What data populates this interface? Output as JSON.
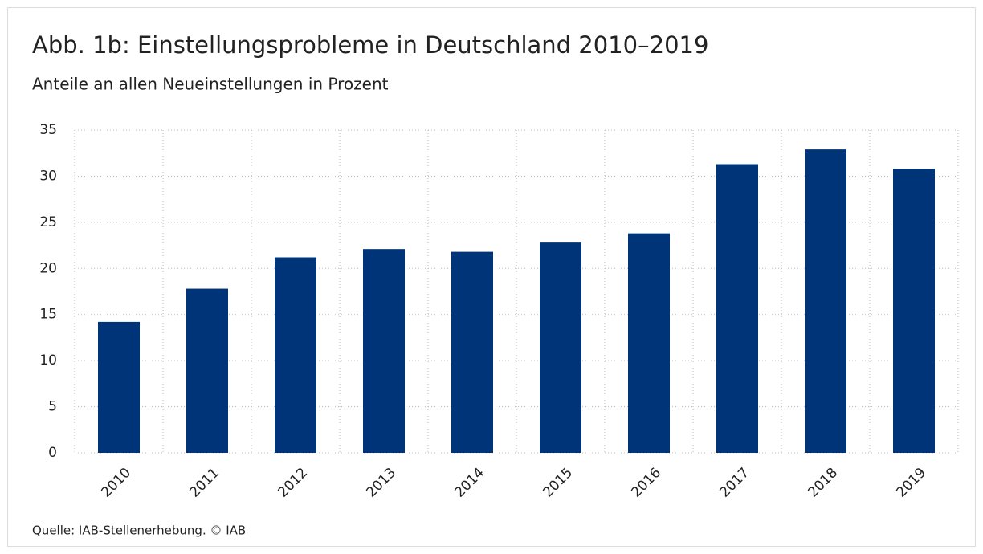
{
  "chart_data": {
    "type": "bar",
    "title": "Abb. 1b: Einstellungsprobleme in Deutschland 2010–2019",
    "subtitle": "Anteile an allen Neueinstellungen in Prozent",
    "source": "Quelle: IAB-Stellenerhebung. © IAB",
    "categories": [
      "2010",
      "2011",
      "2012",
      "2013",
      "2014",
      "2015",
      "2016",
      "2017",
      "2018",
      "2019"
    ],
    "values": [
      14.2,
      17.8,
      21.2,
      22.1,
      21.8,
      22.8,
      23.8,
      31.3,
      32.9,
      30.8
    ],
    "color": "#003478",
    "ylim": [
      0,
      35
    ],
    "yticks": [
      0,
      5,
      10,
      15,
      20,
      25,
      30,
      35
    ],
    "grid": true
  }
}
